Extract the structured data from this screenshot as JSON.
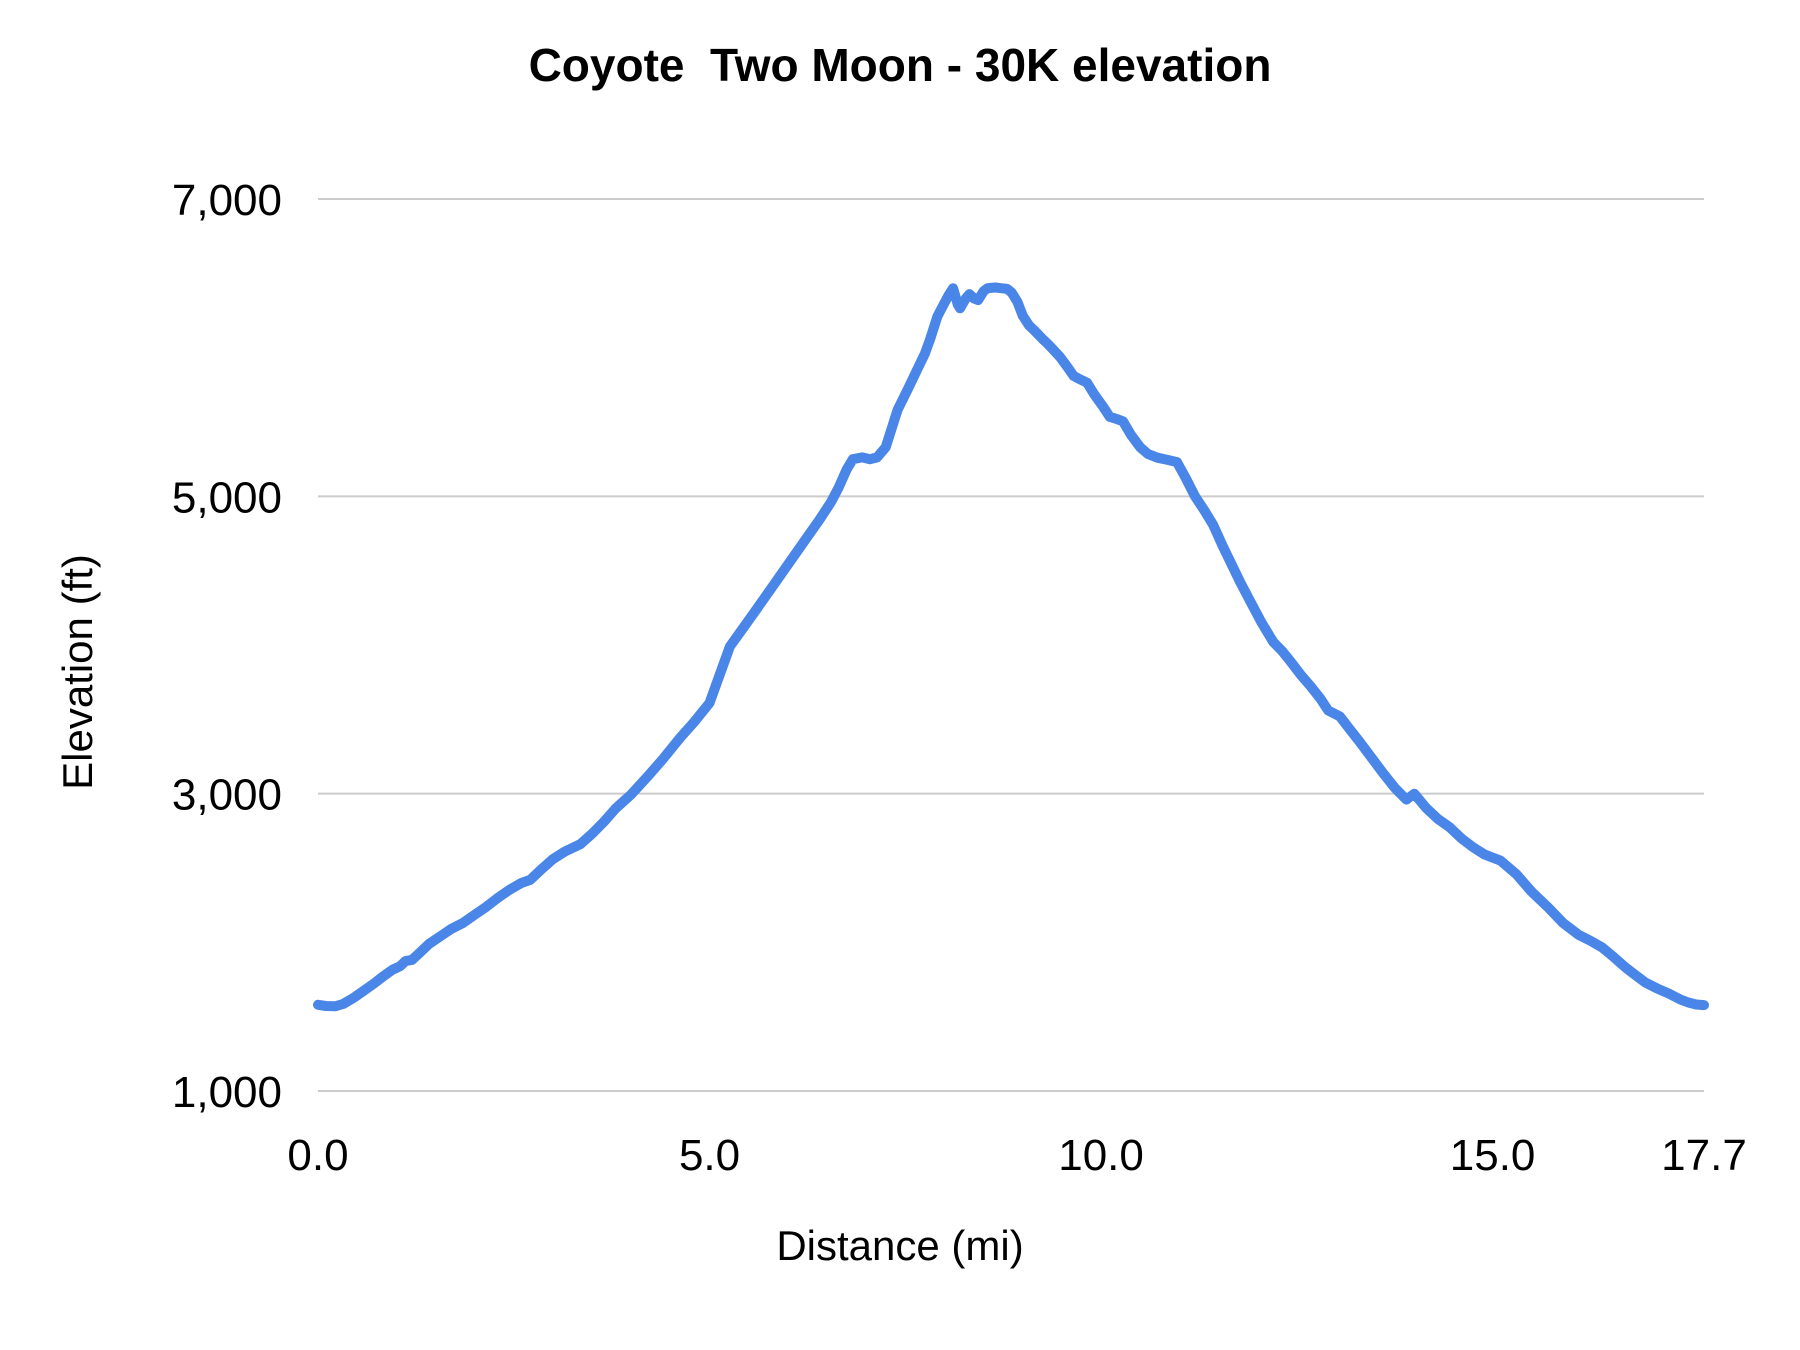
{
  "colors": {
    "background": "#ffffff",
    "line": "#4a86e8",
    "gridline": "#cccccc",
    "text": "#000000"
  },
  "chart_data": {
    "type": "line",
    "title": "Coyote  Two Moon - 30K elevation",
    "xlabel": "Distance (mi)",
    "ylabel": "Elevation (ft)",
    "xlim": [
      0,
      17.7
    ],
    "ylim": [
      1000,
      7000
    ],
    "grid": "horizontal",
    "legend": "none",
    "x_ticks": {
      "values": [
        0,
        5,
        10,
        15,
        17.7
      ],
      "labels": [
        "0.0",
        "5.0",
        "10.0",
        "15.0",
        "17.7"
      ]
    },
    "y_ticks": {
      "values": [
        1000,
        3000,
        5000,
        7000
      ],
      "labels": [
        "1,000",
        "3,000",
        "5,000",
        "7,000"
      ]
    },
    "series": [
      {
        "name": "elevation",
        "color": "#4a86e8",
        "points": [
          [
            0.0,
            1580
          ],
          [
            0.1,
            1572
          ],
          [
            0.22,
            1570
          ],
          [
            0.32,
            1585
          ],
          [
            0.45,
            1625
          ],
          [
            0.6,
            1680
          ],
          [
            0.72,
            1725
          ],
          [
            0.83,
            1770
          ],
          [
            0.95,
            1815
          ],
          [
            1.05,
            1840
          ],
          [
            1.12,
            1875
          ],
          [
            1.2,
            1882
          ],
          [
            1.3,
            1930
          ],
          [
            1.42,
            1990
          ],
          [
            1.56,
            2040
          ],
          [
            1.7,
            2090
          ],
          [
            1.85,
            2130
          ],
          [
            2.0,
            2185
          ],
          [
            2.15,
            2240
          ],
          [
            2.3,
            2300
          ],
          [
            2.45,
            2355
          ],
          [
            2.6,
            2400
          ],
          [
            2.71,
            2420
          ],
          [
            2.85,
            2490
          ],
          [
            3.0,
            2560
          ],
          [
            3.15,
            2610
          ],
          [
            3.35,
            2660
          ],
          [
            3.5,
            2730
          ],
          [
            3.65,
            2810
          ],
          [
            3.8,
            2900
          ],
          [
            4.0,
            2995
          ],
          [
            4.2,
            3110
          ],
          [
            4.4,
            3230
          ],
          [
            4.63,
            3380
          ],
          [
            4.8,
            3480
          ],
          [
            5.0,
            3610
          ],
          [
            5.26,
            3990
          ],
          [
            5.45,
            4130
          ],
          [
            5.6,
            4240
          ],
          [
            5.8,
            4390
          ],
          [
            6.0,
            4540
          ],
          [
            6.2,
            4690
          ],
          [
            6.4,
            4840
          ],
          [
            6.55,
            4960
          ],
          [
            6.65,
            5060
          ],
          [
            6.75,
            5180
          ],
          [
            6.83,
            5250
          ],
          [
            6.95,
            5262
          ],
          [
            7.05,
            5250
          ],
          [
            7.14,
            5262
          ],
          [
            7.25,
            5330
          ],
          [
            7.4,
            5580
          ],
          [
            7.55,
            5740
          ],
          [
            7.65,
            5850
          ],
          [
            7.75,
            5960
          ],
          [
            7.82,
            6060
          ],
          [
            7.91,
            6210
          ],
          [
            8.0,
            6300
          ],
          [
            8.05,
            6350
          ],
          [
            8.11,
            6400
          ],
          [
            8.17,
            6290
          ],
          [
            8.2,
            6265
          ],
          [
            8.27,
            6330
          ],
          [
            8.32,
            6360
          ],
          [
            8.38,
            6330
          ],
          [
            8.43,
            6320
          ],
          [
            8.5,
            6380
          ],
          [
            8.55,
            6400
          ],
          [
            8.65,
            6405
          ],
          [
            8.72,
            6400
          ],
          [
            8.8,
            6395
          ],
          [
            8.86,
            6370
          ],
          [
            8.93,
            6310
          ],
          [
            9.0,
            6215
          ],
          [
            9.08,
            6150
          ],
          [
            9.15,
            6115
          ],
          [
            9.25,
            6060
          ],
          [
            9.32,
            6025
          ],
          [
            9.4,
            5980
          ],
          [
            9.48,
            5935
          ],
          [
            9.57,
            5870
          ],
          [
            9.65,
            5810
          ],
          [
            9.72,
            5790
          ],
          [
            9.82,
            5765
          ],
          [
            9.92,
            5680
          ],
          [
            10.03,
            5600
          ],
          [
            10.11,
            5535
          ],
          [
            10.2,
            5520
          ],
          [
            10.28,
            5505
          ],
          [
            10.38,
            5415
          ],
          [
            10.5,
            5330
          ],
          [
            10.6,
            5285
          ],
          [
            10.72,
            5260
          ],
          [
            10.85,
            5245
          ],
          [
            10.97,
            5230
          ],
          [
            11.08,
            5125
          ],
          [
            11.2,
            5000
          ],
          [
            11.32,
            4905
          ],
          [
            11.43,
            4810
          ],
          [
            11.55,
            4670
          ],
          [
            11.65,
            4560
          ],
          [
            11.78,
            4420
          ],
          [
            11.9,
            4300
          ],
          [
            12.05,
            4150
          ],
          [
            12.2,
            4020
          ],
          [
            12.32,
            3955
          ],
          [
            12.42,
            3890
          ],
          [
            12.55,
            3800
          ],
          [
            12.68,
            3720
          ],
          [
            12.8,
            3640
          ],
          [
            12.9,
            3560
          ],
          [
            13.05,
            3520
          ],
          [
            13.18,
            3430
          ],
          [
            13.3,
            3350
          ],
          [
            13.45,
            3245
          ],
          [
            13.6,
            3140
          ],
          [
            13.75,
            3040
          ],
          [
            13.9,
            2960
          ],
          [
            14.0,
            3000
          ],
          [
            14.15,
            2905
          ],
          [
            14.3,
            2830
          ],
          [
            14.45,
            2775
          ],
          [
            14.6,
            2700
          ],
          [
            14.75,
            2640
          ],
          [
            14.9,
            2590
          ],
          [
            15.1,
            2550
          ],
          [
            15.3,
            2460
          ],
          [
            15.5,
            2340
          ],
          [
            15.7,
            2240
          ],
          [
            15.9,
            2130
          ],
          [
            16.1,
            2050
          ],
          [
            16.25,
            2010
          ],
          [
            16.4,
            1965
          ],
          [
            16.55,
            1900
          ],
          [
            16.7,
            1830
          ],
          [
            16.8,
            1790
          ],
          [
            16.95,
            1730
          ],
          [
            17.1,
            1690
          ],
          [
            17.25,
            1655
          ],
          [
            17.4,
            1615
          ],
          [
            17.5,
            1595
          ],
          [
            17.6,
            1582
          ],
          [
            17.7,
            1578
          ]
        ]
      }
    ]
  }
}
